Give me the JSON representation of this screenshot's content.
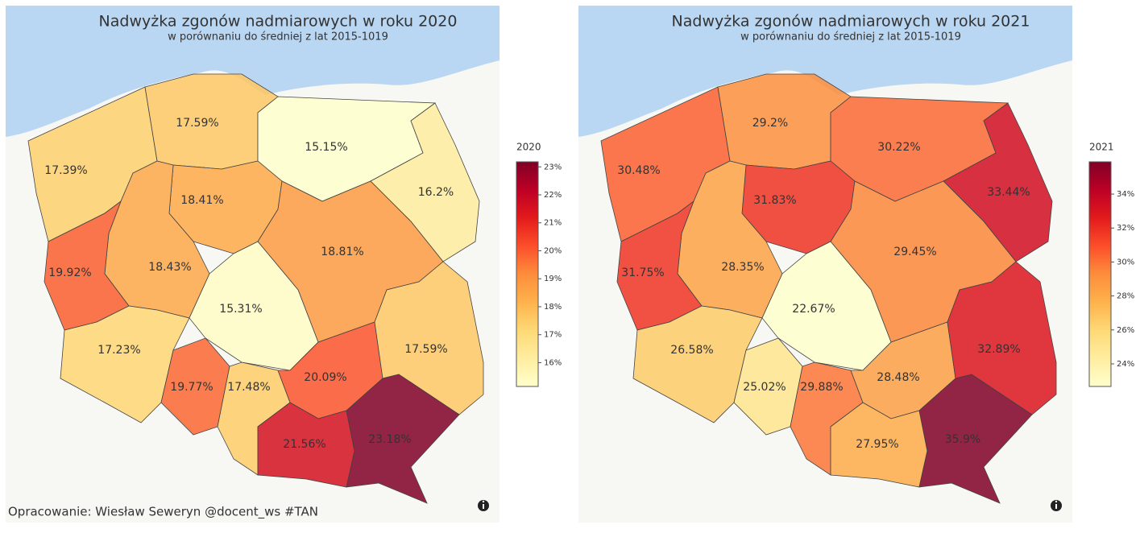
{
  "maps": [
    {
      "title": "Nadwyżka zgonów nadmiarowych w roku 2020",
      "subtitle": "w porównaniu do średniej z lat 2015-1019",
      "colorbar": {
        "title": "2020",
        "range": [
          15.15,
          23.18
        ],
        "ticks": [
          {
            "value": 16,
            "label": "16%"
          },
          {
            "value": 17,
            "label": "17%"
          },
          {
            "value": 18,
            "label": "18%"
          },
          {
            "value": 19,
            "label": "19%"
          },
          {
            "value": 20,
            "label": "20%"
          },
          {
            "value": 21,
            "label": "21%"
          },
          {
            "value": 22,
            "label": "22%"
          },
          {
            "value": 23,
            "label": "23%"
          }
        ]
      },
      "regions": [
        {
          "value": 17.39,
          "label": "17.39%"
        },
        {
          "value": 17.59,
          "label": "17.59%"
        },
        {
          "value": 15.15,
          "label": "15.15%"
        },
        {
          "value": 16.2,
          "label": "16.2%"
        },
        {
          "value": 18.41,
          "label": "18.41%"
        },
        {
          "value": 18.43,
          "label": "18.43%"
        },
        {
          "value": 19.92,
          "label": "19.92%"
        },
        {
          "value": 18.81,
          "label": "18.81%"
        },
        {
          "value": 15.31,
          "label": "15.31%"
        },
        {
          "value": 17.23,
          "label": "17.23%"
        },
        {
          "value": 19.77,
          "label": "19.77%"
        },
        {
          "value": 17.48,
          "label": "17.48%"
        },
        {
          "value": 20.09,
          "label": "20.09%"
        },
        {
          "value": 17.59,
          "label": "17.59%"
        },
        {
          "value": 21.56,
          "label": "21.56%"
        },
        {
          "value": 23.18,
          "label": "23.18%"
        }
      ]
    },
    {
      "title": "Nadwyżka zgonów nadmiarowych w roku 2021",
      "subtitle": "w porównaniu do średniej z lat 2015-1019",
      "colorbar": {
        "title": "2021",
        "range": [
          22.67,
          35.9
        ],
        "ticks": [
          {
            "value": 24,
            "label": "24%"
          },
          {
            "value": 26,
            "label": "26%"
          },
          {
            "value": 28,
            "label": "28%"
          },
          {
            "value": 30,
            "label": "30%"
          },
          {
            "value": 32,
            "label": "32%"
          },
          {
            "value": 34,
            "label": "34%"
          }
        ]
      },
      "regions": [
        {
          "value": 30.48,
          "label": "30.48%"
        },
        {
          "value": 29.2,
          "label": "29.2%"
        },
        {
          "value": 30.22,
          "label": "30.22%"
        },
        {
          "value": 33.44,
          "label": "33.44%"
        },
        {
          "value": 31.83,
          "label": "31.83%"
        },
        {
          "value": 28.35,
          "label": "28.35%"
        },
        {
          "value": 31.75,
          "label": "31.75%"
        },
        {
          "value": 29.45,
          "label": "29.45%"
        },
        {
          "value": 22.67,
          "label": "22.67%"
        },
        {
          "value": 26.58,
          "label": "26.58%"
        },
        {
          "value": 25.02,
          "label": "25.02%"
        },
        {
          "value": 29.88,
          "label": "29.88%"
        },
        {
          "value": 28.48,
          "label": "28.48%"
        },
        {
          "value": 32.89,
          "label": "32.89%"
        },
        {
          "value": 27.95,
          "label": "27.95%"
        },
        {
          "value": 35.9,
          "label": "35.9%"
        }
      ]
    }
  ],
  "footer": "Opracowanie: Wiesław Seweryn @docent_ws #TAN"
}
